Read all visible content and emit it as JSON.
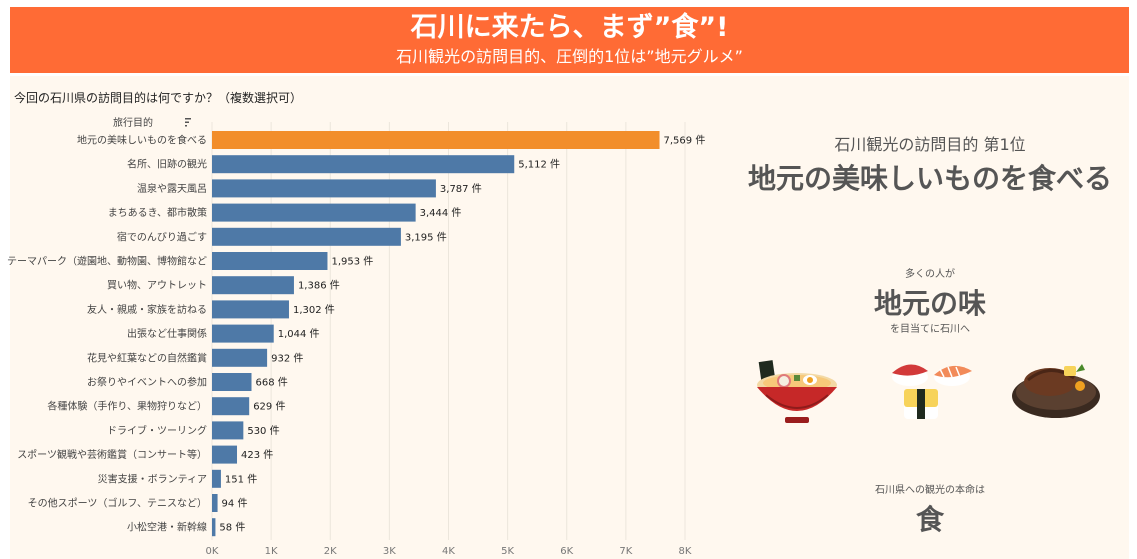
{
  "header": {
    "title": "石川に来たら、まず”食”!",
    "subtitle": "石川観光の訪問目的、圧倒的1位は”地元グルメ”"
  },
  "question": "今回の石川県の訪問目的は何ですか？（複数選択可）",
  "colors": {
    "header_bg": "#ff6b35",
    "bar": "#4e79a7",
    "highlight": "#f28e2b",
    "panel_bg": "#fff8ef"
  },
  "chart_data": {
    "type": "bar",
    "orientation": "horizontal",
    "axis_title": "旅行目的",
    "unit": "件",
    "categories": [
      "地元の美味しいものを食べる",
      "名所、旧跡の観光",
      "温泉や露天風呂",
      "まちあるき、都市散策",
      "宿でのんびり過ごす",
      "テーマパーク（遊園地、動物園、博物館など",
      "買い物、アウトレット",
      "友人・親戚・家族を訪ねる",
      "出張など仕事関係",
      "花見や紅葉などの自然鑑賞",
      "お祭りやイベントへの参加",
      "各種体験（手作り、果物狩りなど）",
      "ドライブ・ツーリング",
      "スポーツ観戦や芸術鑑賞（コンサート等）",
      "災害支援・ボランティア",
      "その他スポーツ（ゴルフ、テニスなど）",
      "小松空港・新幹線"
    ],
    "values": [
      7569,
      5112,
      3787,
      3444,
      3195,
      1953,
      1386,
      1302,
      1044,
      932,
      668,
      629,
      530,
      423,
      151,
      94,
      58
    ],
    "value_labels": [
      "7,569 件",
      "5,112 件",
      "3,787 件",
      "3,444 件",
      "3,195 件",
      "1,953 件",
      "1,386 件",
      "1,302 件",
      "1,044 件",
      "932 件",
      "668 件",
      "629 件",
      "530 件",
      "423 件",
      "151 件",
      "94 件",
      "58 件"
    ],
    "highlight_index": 0,
    "xlim": [
      0,
      8000
    ],
    "xticks": [
      0,
      1000,
      2000,
      3000,
      4000,
      5000,
      6000,
      7000,
      8000
    ],
    "xtick_labels": [
      "0K",
      "1K",
      "2K",
      "3K",
      "4K",
      "5K",
      "6K",
      "7K",
      "8K"
    ],
    "grid": true
  },
  "right_panel": {
    "rank_sub": "石川観光の訪問目的 第1位",
    "rank_main": "地元の美味しいものを食べる",
    "many_people": "多くの人が",
    "local_taste": "地元の味",
    "aim": "を目当てに石川へ",
    "honmei": "石川県への観光の本命は",
    "shoku": "食",
    "food_icons": [
      "ramen-icon",
      "sushi-icon",
      "steak-icon"
    ]
  }
}
